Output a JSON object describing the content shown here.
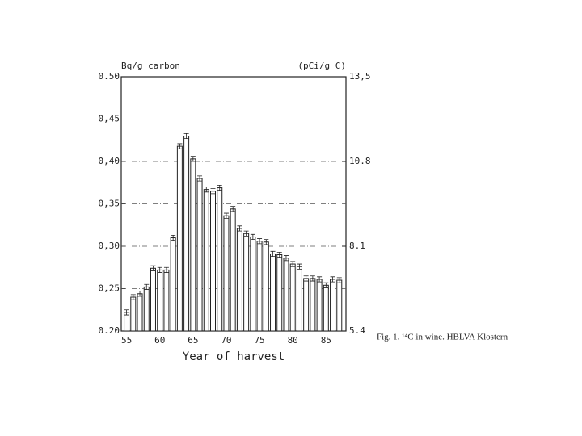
{
  "chart_data": {
    "type": "bar",
    "y_label": "Bq/g carbon",
    "y2_label": "(pCi/g C)",
    "x_label": "Year of harvest",
    "caption": "Fig. 1. ¹⁴C in wine. HBLVA Klostern",
    "x": [
      55,
      56,
      57,
      58,
      59,
      60,
      61,
      62,
      63,
      64,
      65,
      66,
      67,
      68,
      69,
      70,
      71,
      72,
      73,
      74,
      75,
      76,
      77,
      78,
      79,
      80,
      81,
      82,
      83,
      84,
      85,
      86,
      87
    ],
    "values": [
      0.222,
      0.24,
      0.244,
      0.252,
      0.274,
      0.272,
      0.272,
      0.31,
      0.418,
      0.43,
      0.403,
      0.38,
      0.367,
      0.365,
      0.369,
      0.336,
      0.344,
      0.321,
      0.315,
      0.311,
      0.306,
      0.305,
      0.291,
      0.29,
      0.286,
      0.279,
      0.276,
      0.262,
      0.262,
      0.261,
      0.254,
      0.261,
      0.26
    ],
    "errors": [
      0.003,
      0.003,
      0.003,
      0.003,
      0.003,
      0.003,
      0.003,
      0.003,
      0.003,
      0.003,
      0.003,
      0.003,
      0.003,
      0.003,
      0.003,
      0.003,
      0.003,
      0.003,
      0.003,
      0.003,
      0.003,
      0.003,
      0.003,
      0.003,
      0.003,
      0.003,
      0.003,
      0.003,
      0.003,
      0.003,
      0.003,
      0.003,
      0.003
    ],
    "color": "#ffffff",
    "xlim": [
      54.2,
      88
    ],
    "xticks": [
      55,
      60,
      65,
      70,
      75,
      80,
      85
    ],
    "ylim": [
      0.2,
      0.5
    ],
    "yticks": [
      {
        "value": 0.2,
        "label": "0.20"
      },
      {
        "value": 0.25,
        "label": "0,25"
      },
      {
        "value": 0.3,
        "label": "0,30"
      },
      {
        "value": 0.35,
        "label": "0,35"
      },
      {
        "value": 0.4,
        "label": "0,40"
      },
      {
        "value": 0.45,
        "label": "0,45"
      },
      {
        "value": 0.5,
        "label": "0.50"
      }
    ],
    "y2lim": [
      5.4,
      13.5
    ],
    "y2ticks": [
      {
        "value": 5.4,
        "label": "5.4"
      },
      {
        "value": 8.1,
        "label": "8.1"
      },
      {
        "value": 10.8,
        "label": "10.8"
      },
      {
        "value": 13.5,
        "label": "13,5"
      }
    ],
    "grid": true
  }
}
